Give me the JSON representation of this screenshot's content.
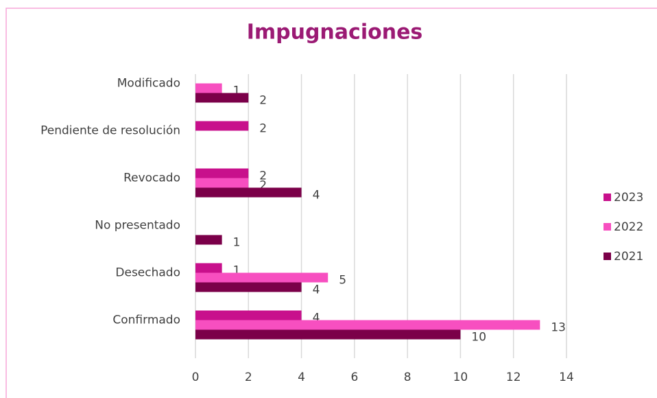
{
  "chart_data": {
    "type": "bar",
    "orientation": "horizontal",
    "title": "Impugnaciones",
    "categories": [
      "Modificado",
      "Pendiente de resolución",
      "Revocado",
      "No presentado",
      "Desechado",
      "Confirmado"
    ],
    "series": [
      {
        "name": "2023",
        "color": "#c8108c",
        "values": [
          null,
          2,
          2,
          null,
          1,
          4
        ]
      },
      {
        "name": "2022",
        "color": "#f74fc0",
        "values": [
          1,
          null,
          2,
          null,
          5,
          13
        ]
      },
      {
        "name": "2021",
        "color": "#7b0049",
        "values": [
          2,
          null,
          4,
          1,
          4,
          10
        ]
      }
    ],
    "xlim": [
      0,
      14
    ],
    "xticks": [
      0,
      2,
      4,
      6,
      8,
      10,
      12,
      14
    ],
    "grid": true,
    "legend": "right"
  }
}
